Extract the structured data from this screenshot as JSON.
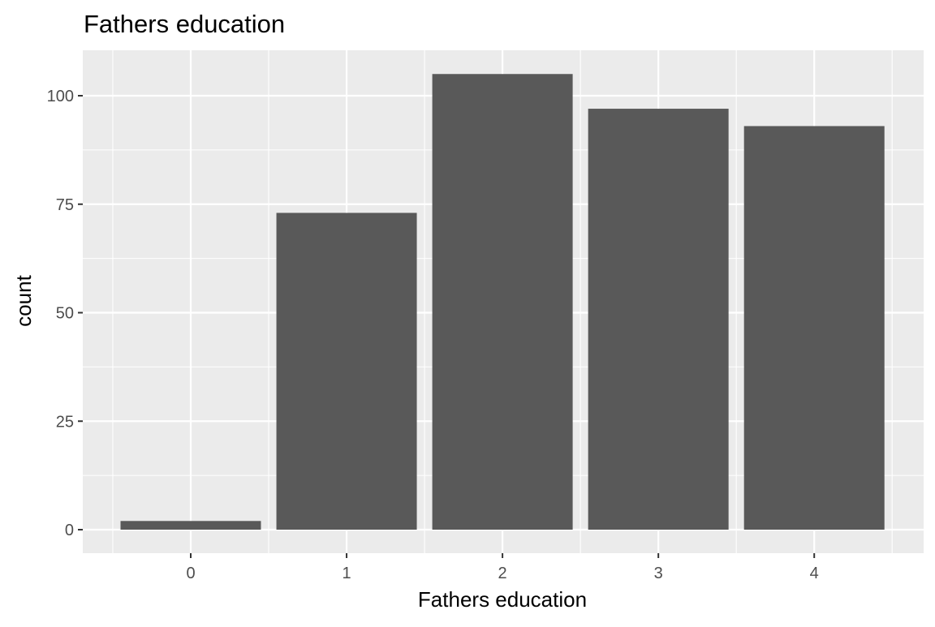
{
  "chart_data": {
    "type": "bar",
    "title": "Fathers education",
    "xlabel": "Fathers education",
    "ylabel": "count",
    "categories": [
      "0",
      "1",
      "2",
      "3",
      "4"
    ],
    "values": [
      2,
      73,
      105,
      97,
      93
    ],
    "ylim": [
      0,
      110
    ],
    "yticks": [
      0,
      25,
      50,
      75,
      100
    ],
    "grid": true,
    "colors": {
      "bar": "#595959",
      "panel": "#EBEBEB",
      "grid_major": "#FFFFFF",
      "axis_text": "#4D4D4D",
      "label_text": "#000000"
    }
  }
}
